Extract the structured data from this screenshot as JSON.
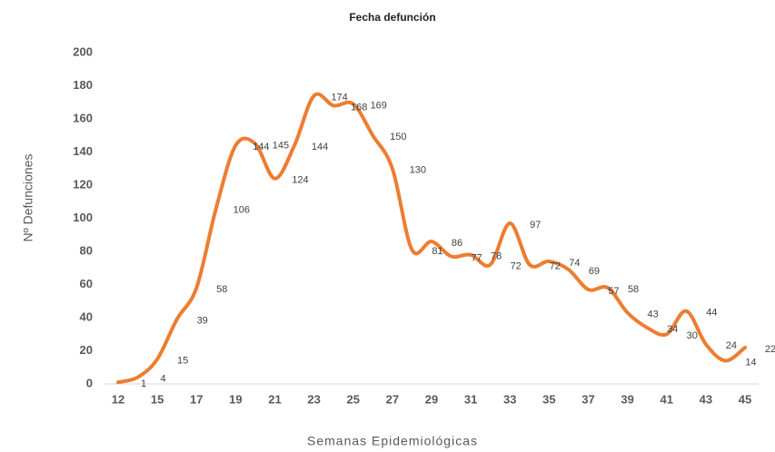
{
  "chart_data": {
    "type": "line",
    "title": "Fecha defunción",
    "x_label": "Semanas Epidemiológicas",
    "y_label": "Nº Defunciones",
    "categories": [
      "12",
      null,
      "15",
      null,
      "17",
      null,
      "19",
      null,
      "21",
      null,
      "23",
      null,
      "25",
      null,
      "27",
      null,
      "29",
      null,
      "31",
      null,
      "33",
      null,
      "35",
      null,
      "37",
      null,
      "39",
      null,
      "41",
      null,
      "43",
      null,
      "45"
    ],
    "series": [
      {
        "name": "Defunciones",
        "color": "#ed7d31",
        "values": [
          1,
          4,
          15,
          39,
          58,
          106,
          144,
          145,
          124,
          144,
          174,
          168,
          169,
          150,
          130,
          81,
          86,
          77,
          78,
          72,
          97,
          72,
          74,
          69,
          57,
          58,
          43,
          34,
          30,
          44,
          24,
          14,
          22
        ]
      }
    ],
    "ylim": [
      0,
      200
    ],
    "yticks": [
      0,
      20,
      40,
      60,
      80,
      100,
      120,
      140,
      160,
      180,
      200
    ],
    "grid": false
  }
}
